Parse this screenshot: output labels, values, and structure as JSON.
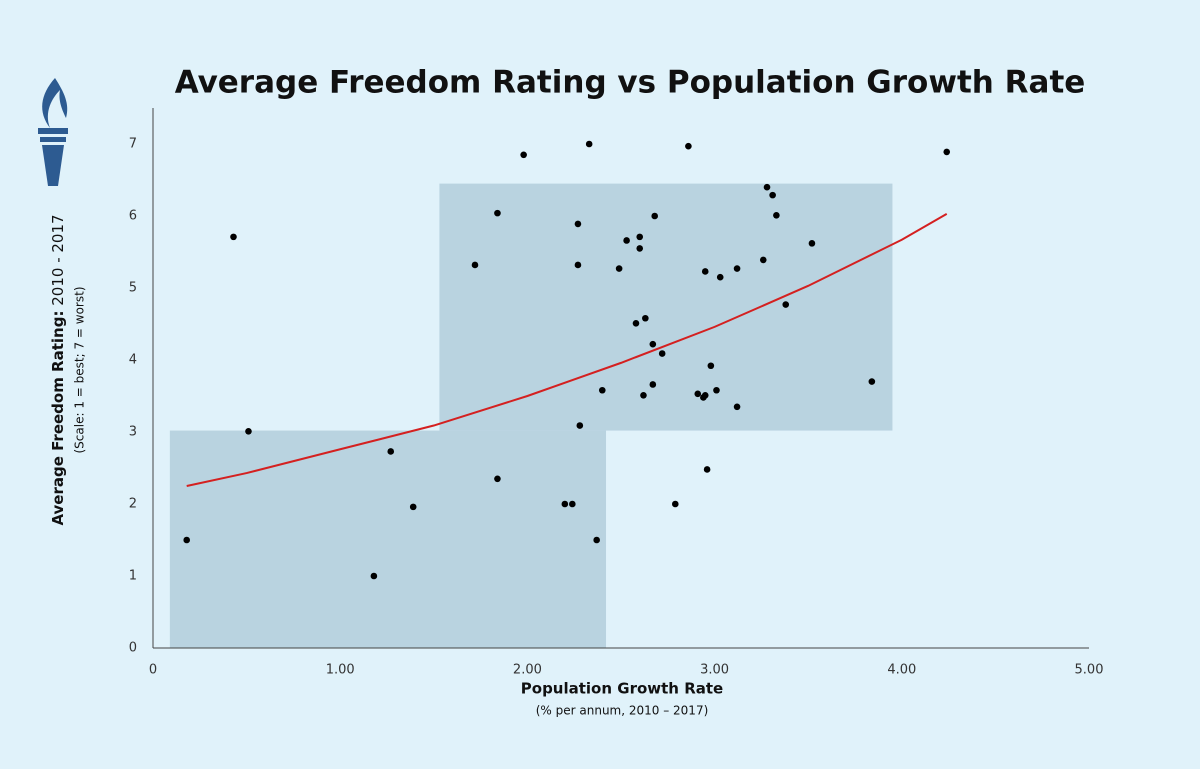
{
  "chart_data": {
    "type": "scatter",
    "title": "Average Freedom Rating vs Population Growth Rate",
    "xlabel": "Population Growth Rate",
    "xlabel_note": "(% per annum,  2010 – 2017)",
    "ylabel": "Average Freedom Rating:",
    "ylabel_years": "2010 - 2017",
    "ylabel_note": "(Scale: 1 = best; 7 = worst)",
    "xlim": [
      0,
      5
    ],
    "ylim": [
      0,
      7.5
    ],
    "xticks": [
      0,
      {
        "value": 1,
        "label": "1.00"
      },
      {
        "value": 2,
        "label": "2.00"
      },
      {
        "value": 3,
        "label": "3.00"
      },
      {
        "value": 4,
        "label": "4.00"
      },
      {
        "value": 5,
        "label": "5.00"
      }
    ],
    "yticks": [
      0,
      1,
      2,
      3,
      4,
      5,
      6,
      7
    ],
    "grid": false,
    "point_color": "#000000",
    "region_color": "#b9d3e0",
    "regions": [
      {
        "x": [
          0.09,
          2.42
        ],
        "y": [
          0,
          3.02
        ]
      },
      {
        "x": [
          1.53,
          3.95
        ],
        "y": [
          3.02,
          6.45
        ]
      }
    ],
    "x": [
      0.18,
      0.43,
      0.51,
      1.18,
      1.27,
      1.39,
      1.72,
      1.84,
      1.84,
      1.98,
      2.2,
      2.24,
      2.27,
      2.27,
      2.28,
      2.33,
      2.37,
      2.4,
      2.49,
      2.53,
      2.58,
      2.6,
      2.6,
      2.62,
      2.63,
      2.67,
      2.67,
      2.68,
      2.72,
      2.79,
      2.86,
      2.91,
      2.94,
      2.95,
      2.95,
      2.96,
      2.98,
      3.01,
      3.03,
      3.12,
      3.12,
      3.26,
      3.28,
      3.31,
      3.33,
      3.38,
      3.52,
      3.84,
      4.24
    ],
    "values": [
      1.5,
      5.71,
      3.01,
      1.0,
      2.73,
      1.96,
      5.32,
      6.04,
      2.35,
      6.85,
      2.0,
      2.0,
      5.89,
      5.32,
      3.09,
      7.0,
      1.5,
      3.58,
      5.27,
      5.66,
      4.51,
      5.71,
      5.55,
      3.51,
      4.58,
      4.22,
      3.66,
      6.0,
      4.09,
      2.0,
      6.97,
      3.53,
      3.48,
      5.23,
      3.51,
      2.48,
      3.92,
      3.58,
      5.15,
      5.27,
      3.35,
      5.39,
      6.4,
      6.29,
      6.01,
      4.77,
      5.62,
      3.7,
      6.89
    ],
    "trend": {
      "color": "#d42020",
      "x": [
        0.18,
        0.5,
        1,
        1.5,
        2,
        2.5,
        3,
        3.5,
        4,
        4.24
      ],
      "values": [
        2.25,
        2.43,
        2.76,
        3.09,
        3.5,
        3.96,
        4.46,
        5.03,
        5.67,
        6.03
      ]
    }
  }
}
